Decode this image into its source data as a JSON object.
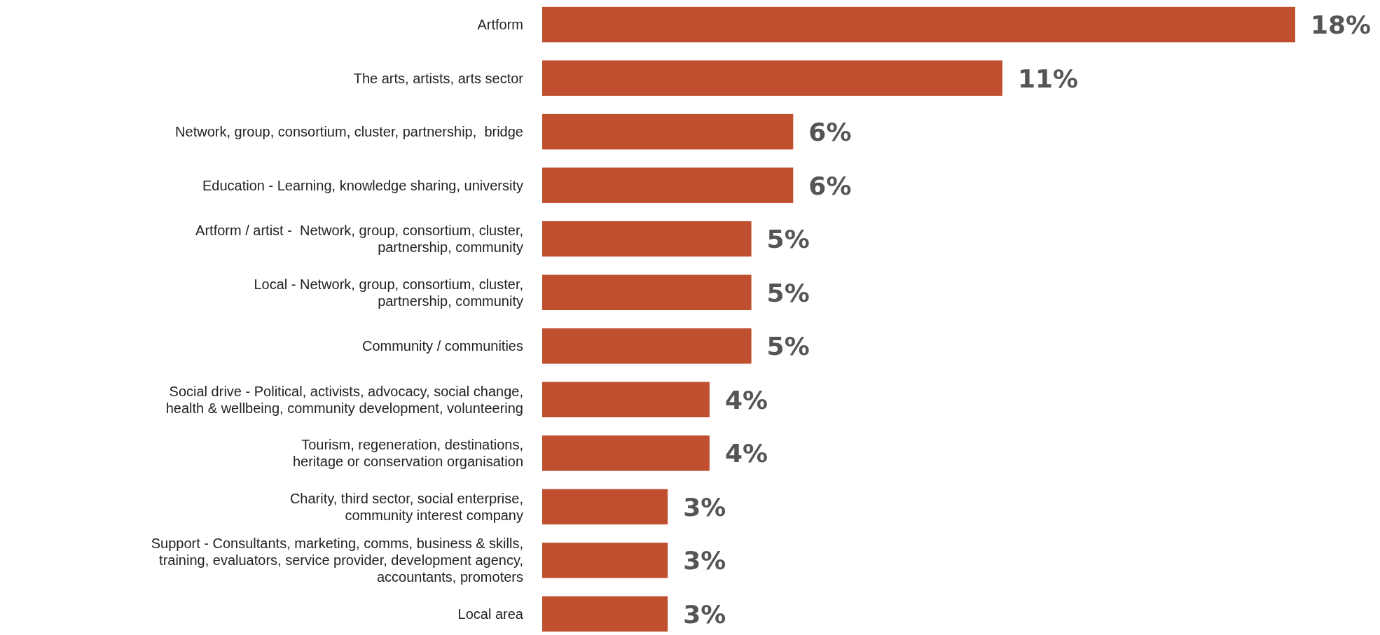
{
  "chart_data": {
    "type": "bar",
    "orientation": "horizontal",
    "categories": [
      "Artform",
      "The arts, artists, arts sector",
      "Network, group, consortium, cluster, partnership,  bridge",
      "Education - Learning, knowledge sharing, university",
      "Artform / artist -  Network, group, consortium, cluster,\npartnership, community",
      "Local - Network, group, consortium, cluster,\npartnership, community",
      "Community / communities",
      "Social drive - Political, activists, advocacy, social change,\nhealth & wellbeing, community development, volunteering",
      "Tourism, regeneration, destinations,\nheritage or conservation organisation",
      "Charity, third sector, social enterprise,\ncommunity interest company",
      "Support - Consultants, marketing, comms, business & skills,\ntraining, evaluators, service provider, development agency,\naccountants, promoters",
      "Local area"
    ],
    "values": [
      18,
      11,
      6,
      6,
      5,
      5,
      5,
      4,
      4,
      3,
      3,
      3
    ],
    "value_labels": [
      "18%",
      "11%",
      "6%",
      "6%",
      "5%",
      "5%",
      "5%",
      "4%",
      "4%",
      "3%",
      "3%",
      "3%"
    ],
    "color": "#bf4f2f"
  }
}
